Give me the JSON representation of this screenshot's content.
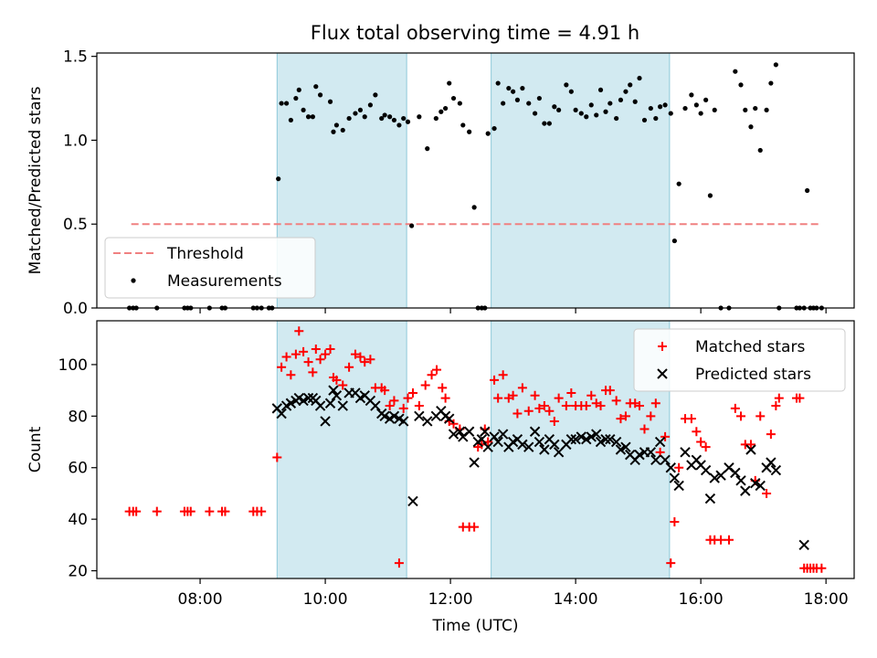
{
  "title": "Flux total observing time = 4.91 h",
  "colors": {
    "band": "#add8e6",
    "threshold": "#f08080",
    "measurement": "#000000",
    "matched": "#ff0000",
    "predicted": "#000000"
  },
  "chart_data": [
    {
      "type": "scatter",
      "panel": "top",
      "ylabel": "Matched/Predicted stars",
      "xlim": [
        6.35,
        18.45
      ],
      "ylim": [
        0,
        1.52
      ],
      "yticks": [
        0,
        0.5,
        1.0,
        1.5
      ],
      "ytick_labels": [
        "0.0",
        "0.5",
        "1.0",
        "1.5"
      ],
      "bands": [
        [
          9.23,
          11.3
        ],
        [
          12.65,
          15.5
        ]
      ],
      "threshold": {
        "value": 0.5,
        "x": [
          6.9,
          17.9
        ],
        "label": "Threshold"
      },
      "legend": {
        "position": "lower-left",
        "entries": [
          "Threshold",
          "Measurements"
        ]
      },
      "series": [
        {
          "name": "Measurements",
          "x": [
            6.87,
            6.93,
            6.98,
            7.31,
            7.75,
            7.8,
            7.85,
            8.15,
            8.35,
            8.4,
            8.85,
            8.91,
            8.98,
            9.1,
            9.15,
            9.25,
            9.3,
            9.38,
            9.45,
            9.53,
            9.58,
            9.65,
            9.73,
            9.8,
            9.85,
            9.92,
            10.08,
            10.13,
            10.18,
            10.28,
            10.38,
            10.48,
            10.56,
            10.63,
            10.72,
            10.8,
            10.9,
            10.95,
            11.03,
            11.1,
            11.18,
            11.25,
            11.32,
            11.38,
            11.5,
            11.63,
            11.77,
            11.85,
            11.92,
            11.98,
            12.05,
            12.15,
            12.2,
            12.3,
            12.38,
            12.44,
            12.5,
            12.55,
            12.6,
            12.7,
            12.76,
            12.84,
            12.93,
            13.0,
            13.07,
            13.15,
            13.25,
            13.35,
            13.42,
            13.5,
            13.58,
            13.66,
            13.73,
            13.85,
            13.93,
            14.0,
            14.09,
            14.17,
            14.25,
            14.33,
            14.4,
            14.48,
            14.55,
            14.65,
            14.72,
            14.8,
            14.87,
            14.95,
            15.02,
            15.1,
            15.2,
            15.28,
            15.35,
            15.43,
            15.52,
            15.58,
            15.65,
            15.75,
            15.85,
            15.93,
            16.0,
            16.08,
            16.15,
            16.22,
            16.32,
            16.45,
            16.55,
            16.64,
            16.71,
            16.8,
            16.87,
            16.95,
            17.05,
            17.12,
            17.2,
            17.25,
            17.53,
            17.58,
            17.65,
            17.7,
            17.75,
            17.8,
            17.85,
            17.93
          ],
          "y": [
            0,
            0,
            0,
            0,
            0,
            0,
            0,
            0,
            0,
            0,
            0,
            0,
            0,
            0,
            0,
            0.77,
            1.22,
            1.22,
            1.12,
            1.25,
            1.3,
            1.18,
            1.14,
            1.14,
            1.32,
            1.27,
            1.23,
            1.05,
            1.09,
            1.06,
            1.13,
            1.16,
            1.18,
            1.14,
            1.21,
            1.27,
            1.13,
            1.15,
            1.14,
            1.12,
            1.09,
            1.13,
            1.11,
            0.49,
            1.14,
            0.95,
            1.13,
            1.17,
            1.19,
            1.34,
            1.25,
            1.22,
            1.09,
            1.05,
            0.6,
            0,
            0,
            0,
            1.04,
            1.07,
            1.34,
            1.22,
            1.31,
            1.29,
            1.24,
            1.31,
            1.22,
            1.16,
            1.25,
            1.1,
            1.1,
            1.2,
            1.18,
            1.33,
            1.29,
            1.18,
            1.16,
            1.14,
            1.21,
            1.15,
            1.3,
            1.17,
            1.22,
            1.13,
            1.24,
            1.29,
            1.33,
            1.23,
            1.37,
            1.12,
            1.19,
            1.13,
            1.2,
            1.21,
            1.16,
            0.4,
            0.74,
            1.19,
            1.27,
            1.21,
            1.16,
            1.24,
            0.67,
            1.18,
            0,
            0,
            1.41,
            1.33,
            1.18,
            1.08,
            1.19,
            0.94,
            1.18,
            1.34,
            1.45,
            0,
            0,
            0,
            0,
            0.7,
            0,
            0,
            0,
            0
          ]
        }
      ]
    },
    {
      "type": "scatter",
      "panel": "bottom",
      "ylabel": "Count",
      "xlabel": "Time (UTC)",
      "xlim": [
        6.35,
        18.45
      ],
      "ylim": [
        17,
        117
      ],
      "yticks": [
        20,
        40,
        60,
        80,
        100
      ],
      "ytick_labels": [
        "20",
        "40",
        "60",
        "80",
        "100"
      ],
      "xticks": [
        8,
        10,
        12,
        14,
        16,
        18
      ],
      "xtick_labels": [
        "08:00",
        "10:00",
        "12:00",
        "14:00",
        "16:00",
        "18:00"
      ],
      "bands": [
        [
          9.23,
          11.3
        ],
        [
          12.65,
          15.5
        ]
      ],
      "legend": {
        "position": "upper-right",
        "entries": [
          "Matched stars",
          "Predicted stars"
        ]
      },
      "series": [
        {
          "name": "Matched stars",
          "x": [
            6.87,
            6.93,
            6.98,
            7.31,
            7.75,
            7.8,
            7.85,
            8.15,
            8.35,
            8.4,
            8.85,
            8.91,
            8.98,
            9.23,
            9.3,
            9.38,
            9.45,
            9.53,
            9.58,
            9.65,
            9.73,
            9.8,
            9.85,
            9.92,
            10.0,
            10.08,
            10.13,
            10.18,
            10.28,
            10.38,
            10.48,
            10.56,
            10.63,
            10.72,
            10.8,
            10.9,
            10.95,
            11.03,
            11.1,
            11.18,
            11.25,
            11.32,
            11.4,
            11.5,
            11.6,
            11.7,
            11.78,
            11.87,
            11.92,
            11.98,
            12.05,
            12.15,
            12.2,
            12.3,
            12.38,
            12.44,
            12.5,
            12.55,
            12.6,
            12.7,
            12.76,
            12.84,
            12.93,
            13.0,
            13.07,
            13.15,
            13.25,
            13.35,
            13.42,
            13.5,
            13.58,
            13.66,
            13.73,
            13.85,
            13.93,
            14.0,
            14.09,
            14.17,
            14.25,
            14.33,
            14.4,
            14.48,
            14.55,
            14.65,
            14.72,
            14.8,
            14.87,
            14.95,
            15.02,
            15.1,
            15.2,
            15.28,
            15.35,
            15.43,
            15.52,
            15.58,
            15.65,
            15.75,
            15.85,
            15.93,
            16.0,
            16.08,
            16.15,
            16.22,
            16.32,
            16.45,
            16.55,
            16.64,
            16.71,
            16.8,
            16.87,
            16.95,
            17.05,
            17.12,
            17.2,
            17.25,
            17.53,
            17.58,
            17.65,
            17.7,
            17.75,
            17.8,
            17.85,
            17.93
          ],
          "y": [
            43,
            43,
            43,
            43,
            43,
            43,
            43,
            43,
            43,
            43,
            43,
            43,
            43,
            64,
            99,
            103,
            96,
            104,
            113,
            105,
            101,
            97,
            106,
            102,
            104,
            106,
            95,
            94,
            92,
            99,
            104,
            103,
            101,
            102,
            91,
            91,
            90,
            84,
            86,
            23,
            83,
            87,
            89,
            84,
            92,
            96,
            98,
            91,
            87,
            78,
            77,
            75,
            37,
            37,
            37,
            68,
            69,
            75,
            70,
            94,
            87,
            96,
            87,
            88,
            81,
            91,
            82,
            88,
            83,
            84,
            82,
            78,
            87,
            84,
            89,
            84,
            84,
            84,
            88,
            85,
            84,
            90,
            90,
            86,
            79,
            80,
            85,
            85,
            84,
            75,
            80,
            85,
            66,
            72,
            23,
            39,
            60,
            79,
            79,
            74,
            70,
            68,
            32,
            32,
            32,
            32,
            83,
            80,
            69,
            69,
            55,
            80,
            50,
            73,
            84,
            87,
            87,
            87,
            21,
            21,
            21,
            21,
            21,
            21
          ]
        },
        {
          "name": "Predicted stars",
          "x": [
            9.23,
            9.3,
            9.38,
            9.45,
            9.53,
            9.58,
            9.65,
            9.73,
            9.8,
            9.85,
            9.92,
            10.0,
            10.08,
            10.13,
            10.18,
            10.28,
            10.38,
            10.48,
            10.56,
            10.63,
            10.72,
            10.8,
            10.9,
            10.95,
            11.03,
            11.1,
            11.18,
            11.25,
            11.4,
            11.5,
            11.63,
            11.77,
            11.85,
            11.92,
            11.98,
            12.05,
            12.15,
            12.2,
            12.3,
            12.38,
            12.44,
            12.5,
            12.55,
            12.6,
            12.7,
            12.76,
            12.84,
            12.93,
            13.0,
            13.07,
            13.15,
            13.25,
            13.35,
            13.42,
            13.5,
            13.58,
            13.66,
            13.73,
            13.85,
            13.93,
            14.0,
            14.09,
            14.17,
            14.25,
            14.33,
            14.4,
            14.48,
            14.55,
            14.65,
            14.72,
            14.8,
            14.87,
            14.95,
            15.02,
            15.1,
            15.2,
            15.28,
            15.35,
            15.43,
            15.52,
            15.58,
            15.65,
            15.75,
            15.85,
            15.93,
            16.0,
            16.08,
            16.15,
            16.22,
            16.32,
            16.45,
            16.55,
            16.64,
            16.71,
            16.8,
            16.87,
            16.95,
            17.05,
            17.12,
            17.2,
            17.65
          ],
          "y": [
            83,
            81,
            84,
            85,
            86,
            87,
            86,
            87,
            87,
            86,
            84,
            78,
            85,
            90,
            88,
            84,
            89,
            89,
            87,
            88,
            86,
            84,
            81,
            80,
            79,
            80,
            79,
            78,
            47,
            80,
            78,
            80,
            82,
            80,
            79,
            73,
            74,
            72,
            74,
            62,
            70,
            71,
            74,
            68,
            72,
            70,
            73,
            68,
            70,
            71,
            69,
            68,
            74,
            70,
            67,
            71,
            69,
            66,
            69,
            71,
            71,
            72,
            71,
            72,
            73,
            70,
            71,
            71,
            70,
            67,
            68,
            65,
            63,
            65,
            66,
            66,
            63,
            70,
            63,
            60,
            56,
            53,
            66,
            61,
            63,
            61,
            59,
            48,
            56,
            57,
            60,
            58,
            55,
            51,
            67,
            54,
            53,
            60,
            62,
            59,
            30
          ]
        }
      ]
    }
  ]
}
